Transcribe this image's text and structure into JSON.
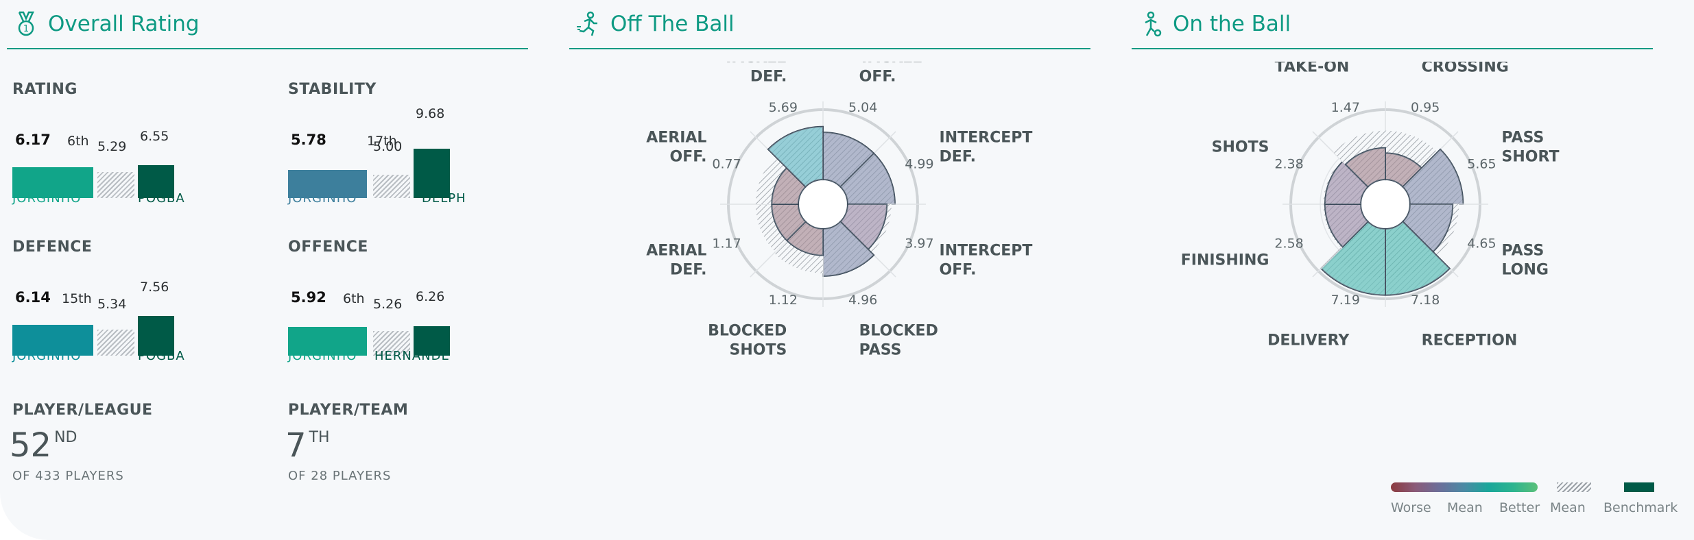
{
  "sections": {
    "overall": {
      "title": "Overall Rating",
      "icon": "medal-icon"
    },
    "off_ball": {
      "title": "Off The Ball",
      "icon": "running-player-icon"
    },
    "on_ball": {
      "title": "On the Ball",
      "icon": "player-with-ball-icon"
    }
  },
  "metrics": [
    {
      "label": "RATING",
      "value": "6.17",
      "rank": "6th",
      "mean": "5.29",
      "bench_value": "6.55",
      "player": "JORGINHO",
      "bench_player": "POGBA",
      "player_color": "#11a589",
      "name_color": "#11a589"
    },
    {
      "label": "STABILITY",
      "value": "5.78",
      "rank": "17th",
      "mean": "5.00",
      "bench_value": "9.68",
      "player": "JORGINHO",
      "bench_player": "DELPH",
      "player_color": "#3d7f9c",
      "name_color": "#3d7f9c"
    },
    {
      "label": "DEFENCE",
      "value": "6.14",
      "rank": "15th",
      "mean": "5.34",
      "bench_value": "7.56",
      "player": "JORGINHO",
      "bench_player": "POGBA",
      "player_color": "#0e8f9a",
      "name_color": "#0e8f9a"
    },
    {
      "label": "OFFENCE",
      "value": "5.92",
      "rank": "6th",
      "mean": "5.26",
      "bench_value": "6.26",
      "player": "JORGINHO",
      "bench_player": "HERNANDE",
      "player_color": "#11a589",
      "name_color": "#11a589"
    }
  ],
  "ranks": [
    {
      "label": "PLAYER/LEAGUE",
      "value": "52",
      "suffix": "ND",
      "sub": "OF 433 PLAYERS"
    },
    {
      "label": "PLAYER/TEAM",
      "value": "7",
      "suffix": "TH",
      "sub": "OF 28 PLAYERS"
    }
  ],
  "radars": [
    {
      "name": "off-the-ball",
      "segments": [
        {
          "label": [
            "TACKLE",
            "OFF."
          ],
          "value": "5.04",
          "score": 0.82,
          "mean": 0.77,
          "color": "#8a94b0"
        },
        {
          "label": [
            "INTERCEPT",
            "DEF."
          ],
          "value": "4.99",
          "score": 0.82,
          "mean": 0.76,
          "color": "#8a94b0"
        },
        {
          "label": [
            "INTERCEPT",
            "OFF."
          ],
          "value": "3.97",
          "score": 0.68,
          "mean": 0.76,
          "color": "#9c8da8"
        },
        {
          "label": [
            "BLOCKED",
            "PASS"
          ],
          "value": "4.96",
          "score": 0.82,
          "mean": 0.77,
          "color": "#8a94b0"
        },
        {
          "label": [
            "BLOCKED",
            "SHOTS"
          ],
          "value": "1.12",
          "score": 0.46,
          "mean": 0.77,
          "color": "#a38790"
        },
        {
          "label": [
            "AERIAL",
            "DEF."
          ],
          "value": "1.17",
          "score": 0.46,
          "mean": 0.74,
          "color": "#a38790"
        },
        {
          "label": [
            "AERIAL",
            "OFF."
          ],
          "value": "0.77",
          "score": 0.46,
          "mean": 0.74,
          "color": "#a38790"
        },
        {
          "label": [
            "TACKLE",
            "DEF."
          ],
          "value": "5.69",
          "score": 0.92,
          "mean": 0.78,
          "color": "#5fb6c2"
        }
      ]
    },
    {
      "name": "on-the-ball",
      "segments": [
        {
          "label": [
            "CROSSING"
          ],
          "value": "0.95",
          "score": 0.46,
          "mean": 0.85,
          "color": "#a38790"
        },
        {
          "label": [
            "PASS",
            "SHORT"
          ],
          "value": "5.65",
          "score": 0.92,
          "mean": 0.85,
          "color": "#8a94b0"
        },
        {
          "label": [
            "PASS",
            "LONG"
          ],
          "value": "4.65",
          "score": 0.74,
          "mean": 0.85,
          "color": "#8a94b0"
        },
        {
          "label": [
            "RECEPTION"
          ],
          "value": "7.18",
          "score": 1.15,
          "mean": 0.85,
          "color": "#4dbab2"
        },
        {
          "label": [
            "DELIVERY"
          ],
          "value": "7.19",
          "score": 1.15,
          "mean": 0.85,
          "color": "#4dbab2"
        },
        {
          "label": [
            "FINISHING"
          ],
          "value": "2.58",
          "score": 0.62,
          "mean": 0.65,
          "color": "#9c8da8"
        },
        {
          "label": [
            "SHOTS"
          ],
          "value": "2.38",
          "score": 0.62,
          "mean": 0.65,
          "color": "#9c8da8"
        },
        {
          "label": [
            "TAKE-ON"
          ],
          "value": "1.47",
          "score": 0.55,
          "mean": 0.85,
          "color": "#a38790"
        }
      ]
    }
  ],
  "legend": {
    "worse": "Worse",
    "mean": "Mean",
    "better": "Better",
    "mean_pattern": "Mean",
    "benchmark": "Benchmark",
    "gradient": [
      "#8b3b3f",
      "#8a5a78",
      "#6b6f9a",
      "#4b8aa4",
      "#1aa79a",
      "#2cb48f",
      "#5bc07a"
    ],
    "benchmark_color": "#005a47"
  },
  "colors": {
    "accent": "#0e9a83",
    "benchmark": "#005a47"
  }
}
